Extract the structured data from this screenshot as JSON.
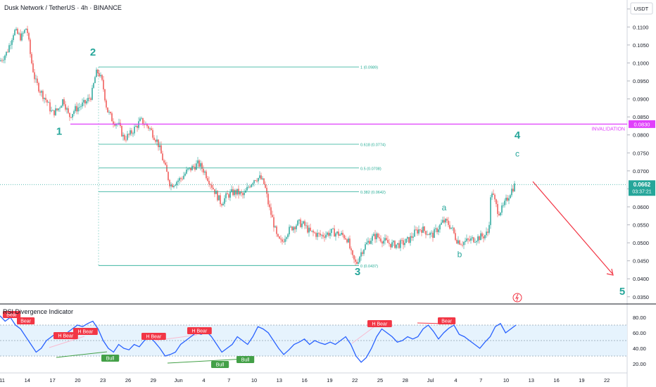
{
  "header": {
    "title": "Dusk Network / TetherUS · 4h · BINANCE",
    "currency": "USDT"
  },
  "price_panel": {
    "current_price": "0.0662",
    "countdown": "03:37:21",
    "invalidation_price": "0.0830",
    "invalidation_label": "INVALIDATION",
    "ticks": [
      "0.1150",
      "0.1100",
      "0.1050",
      "0.1000",
      "0.0950",
      "0.0900",
      "0.0850",
      "0.0800",
      "0.0750",
      "0.0700",
      "0.0650",
      "0.0600",
      "0.0550",
      "0.0500",
      "0.0450",
      "0.0400",
      "0.0350"
    ]
  },
  "rsi_panel": {
    "title": "RSI Divergence Indicator",
    "ticks": [
      "80.00",
      "60.00",
      "40.00",
      "20.00"
    ]
  },
  "x_axis": {
    "labels": [
      "11",
      "14",
      "17",
      "20",
      "23",
      "26",
      "29",
      "Jun",
      "4",
      "7",
      "10",
      "13",
      "16",
      "19",
      "22",
      "25",
      "28",
      "Jul",
      "4",
      "7",
      "10",
      "13",
      "16",
      "19",
      "22"
    ]
  },
  "colors": {
    "up": "#26a69a",
    "down": "#ef5350",
    "fib": "#22ab94",
    "invalidation": "#e040fb",
    "rsi_line": "#2962ff",
    "rsi_band": "#e3f2fd",
    "wave": "#26a69a",
    "arrow": "#f23645",
    "bear": "#f23645",
    "bull": "#43a047"
  },
  "chart_data": {
    "type": "candlestick",
    "pair": "DUSK/USDT",
    "timeframe": "4h",
    "ylim": [
      0.033,
      0.1175
    ],
    "close_path": [
      [
        0,
        0.1005
      ],
      [
        10,
        0.103
      ],
      [
        20,
        0.109
      ],
      [
        30,
        0.107
      ],
      [
        38,
        0.11
      ],
      [
        44,
        0.101
      ],
      [
        50,
        0.095
      ],
      [
        58,
        0.092
      ],
      [
        66,
        0.0895
      ],
      [
        74,
        0.086
      ],
      [
        82,
        0.087
      ],
      [
        90,
        0.09
      ],
      [
        98,
        0.085
      ],
      [
        106,
        0.087
      ],
      [
        114,
        0.088
      ],
      [
        122,
        0.089
      ],
      [
        130,
        0.091
      ],
      [
        136,
        0.097
      ],
      [
        140,
        0.0975
      ],
      [
        146,
        0.094
      ],
      [
        152,
        0.087
      ],
      [
        160,
        0.084
      ],
      [
        168,
        0.083
      ],
      [
        176,
        0.079
      ],
      [
        184,
        0.08
      ],
      [
        192,
        0.082
      ],
      [
        200,
        0.084
      ],
      [
        206,
        0.083
      ],
      [
        212,
        0.082
      ],
      [
        218,
        0.08
      ],
      [
        224,
        0.078
      ],
      [
        230,
        0.074
      ],
      [
        236,
        0.07
      ],
      [
        242,
        0.066
      ],
      [
        250,
        0.067
      ],
      [
        258,
        0.068
      ],
      [
        266,
        0.07
      ],
      [
        274,
        0.071
      ],
      [
        282,
        0.072
      ],
      [
        290,
        0.07
      ],
      [
        298,
        0.067
      ],
      [
        306,
        0.064
      ],
      [
        314,
        0.061
      ],
      [
        322,
        0.063
      ],
      [
        330,
        0.064
      ],
      [
        338,
        0.064
      ],
      [
        346,
        0.063
      ],
      [
        354,
        0.066
      ],
      [
        362,
        0.068
      ],
      [
        370,
        0.068
      ],
      [
        376,
        0.066
      ],
      [
        382,
        0.06
      ],
      [
        388,
        0.056
      ],
      [
        394,
        0.051
      ],
      [
        400,
        0.05
      ],
      [
        408,
        0.053
      ],
      [
        416,
        0.0545
      ],
      [
        424,
        0.0555
      ],
      [
        432,
        0.055
      ],
      [
        440,
        0.053
      ],
      [
        448,
        0.0525
      ],
      [
        456,
        0.052
      ],
      [
        464,
        0.0525
      ],
      [
        472,
        0.053
      ],
      [
        480,
        0.0525
      ],
      [
        488,
        0.052
      ],
      [
        494,
        0.051
      ],
      [
        500,
        0.046
      ],
      [
        506,
        0.044
      ],
      [
        512,
        0.047
      ],
      [
        518,
        0.049
      ],
      [
        526,
        0.051
      ],
      [
        534,
        0.052
      ],
      [
        542,
        0.051
      ],
      [
        550,
        0.05
      ],
      [
        558,
        0.0495
      ],
      [
        566,
        0.0495
      ],
      [
        574,
        0.05
      ],
      [
        582,
        0.051
      ],
      [
        590,
        0.053
      ],
      [
        598,
        0.054
      ],
      [
        606,
        0.053
      ],
      [
        614,
        0.052
      ],
      [
        622,
        0.054
      ],
      [
        630,
        0.056
      ],
      [
        636,
        0.0555
      ],
      [
        642,
        0.054
      ],
      [
        648,
        0.051
      ],
      [
        656,
        0.05
      ],
      [
        664,
        0.0505
      ],
      [
        672,
        0.051
      ],
      [
        680,
        0.0515
      ],
      [
        688,
        0.052
      ],
      [
        694,
        0.053
      ],
      [
        698,
        0.065
      ],
      [
        702,
        0.062
      ],
      [
        708,
        0.0585
      ],
      [
        714,
        0.0595
      ],
      [
        720,
        0.062
      ],
      [
        726,
        0.0645
      ],
      [
        732,
        0.0662
      ]
    ],
    "fib_levels": [
      {
        "ratio": "1",
        "value": 0.0989,
        "label": "1 (0.0989)"
      },
      {
        "ratio": "0.618",
        "value": 0.0774,
        "label": "0.618 (0.0774)"
      },
      {
        "ratio": "0.5",
        "value": 0.0708,
        "label": "0.5 (0.0708)"
      },
      {
        "ratio": "0.382",
        "value": 0.0642,
        "label": "0.382 (0.0642)"
      },
      {
        "ratio": "0",
        "value": 0.0437,
        "label": "0 (0.0437)"
      }
    ],
    "invalidation_level": 0.083,
    "current_price": 0.0662,
    "wave_labels": [
      {
        "label": "1",
        "value": 0.08
      },
      {
        "label": "2",
        "value": 0.102
      },
      {
        "label": "3",
        "value": 0.041
      },
      {
        "label": "4",
        "value": 0.079
      },
      {
        "label": "a",
        "value": 0.059
      },
      {
        "label": "b",
        "value": 0.046
      },
      {
        "label": "c",
        "value": 0.074
      },
      {
        "label": "5",
        "value": 0.0355
      }
    ],
    "rsi": {
      "ylim": [
        10,
        90
      ],
      "band": [
        70,
        30
      ],
      "midline": 50,
      "values": [
        82,
        75,
        80,
        70,
        65,
        55,
        45,
        35,
        40,
        50,
        55,
        60,
        55,
        60,
        65,
        70,
        68,
        72,
        75,
        65,
        50,
        40,
        35,
        45,
        40,
        38,
        45,
        42,
        50,
        55,
        48,
        40,
        30,
        32,
        35,
        45,
        50,
        55,
        60,
        58,
        62,
        55,
        45,
        35,
        40,
        45,
        55,
        50,
        45,
        55,
        68,
        65,
        60,
        50,
        40,
        32,
        38,
        45,
        48,
        52,
        45,
        50,
        47,
        45,
        48,
        45,
        50,
        55,
        45,
        30,
        22,
        28,
        40,
        55,
        65,
        60,
        55,
        48,
        50,
        55,
        52,
        55,
        65,
        70,
        62,
        52,
        60,
        66,
        70,
        58,
        55,
        50,
        45,
        40,
        48,
        55,
        68,
        72,
        60,
        65,
        70
      ]
    },
    "rsi_signals": [
      {
        "label": "Bear",
        "type": "bear"
      },
      {
        "label": "Bear",
        "type": "bear"
      },
      {
        "label": "H Bear",
        "type": "bear"
      },
      {
        "label": "H Bear",
        "type": "bear"
      },
      {
        "label": "Bull",
        "type": "bull"
      },
      {
        "label": "H Bear",
        "type": "bear"
      },
      {
        "label": "H Bear",
        "type": "bear"
      },
      {
        "label": "Bull",
        "type": "bull"
      },
      {
        "label": "Bull",
        "type": "bull"
      },
      {
        "label": "H Bear",
        "type": "bear"
      },
      {
        "label": "Bear",
        "type": "bear"
      }
    ]
  }
}
